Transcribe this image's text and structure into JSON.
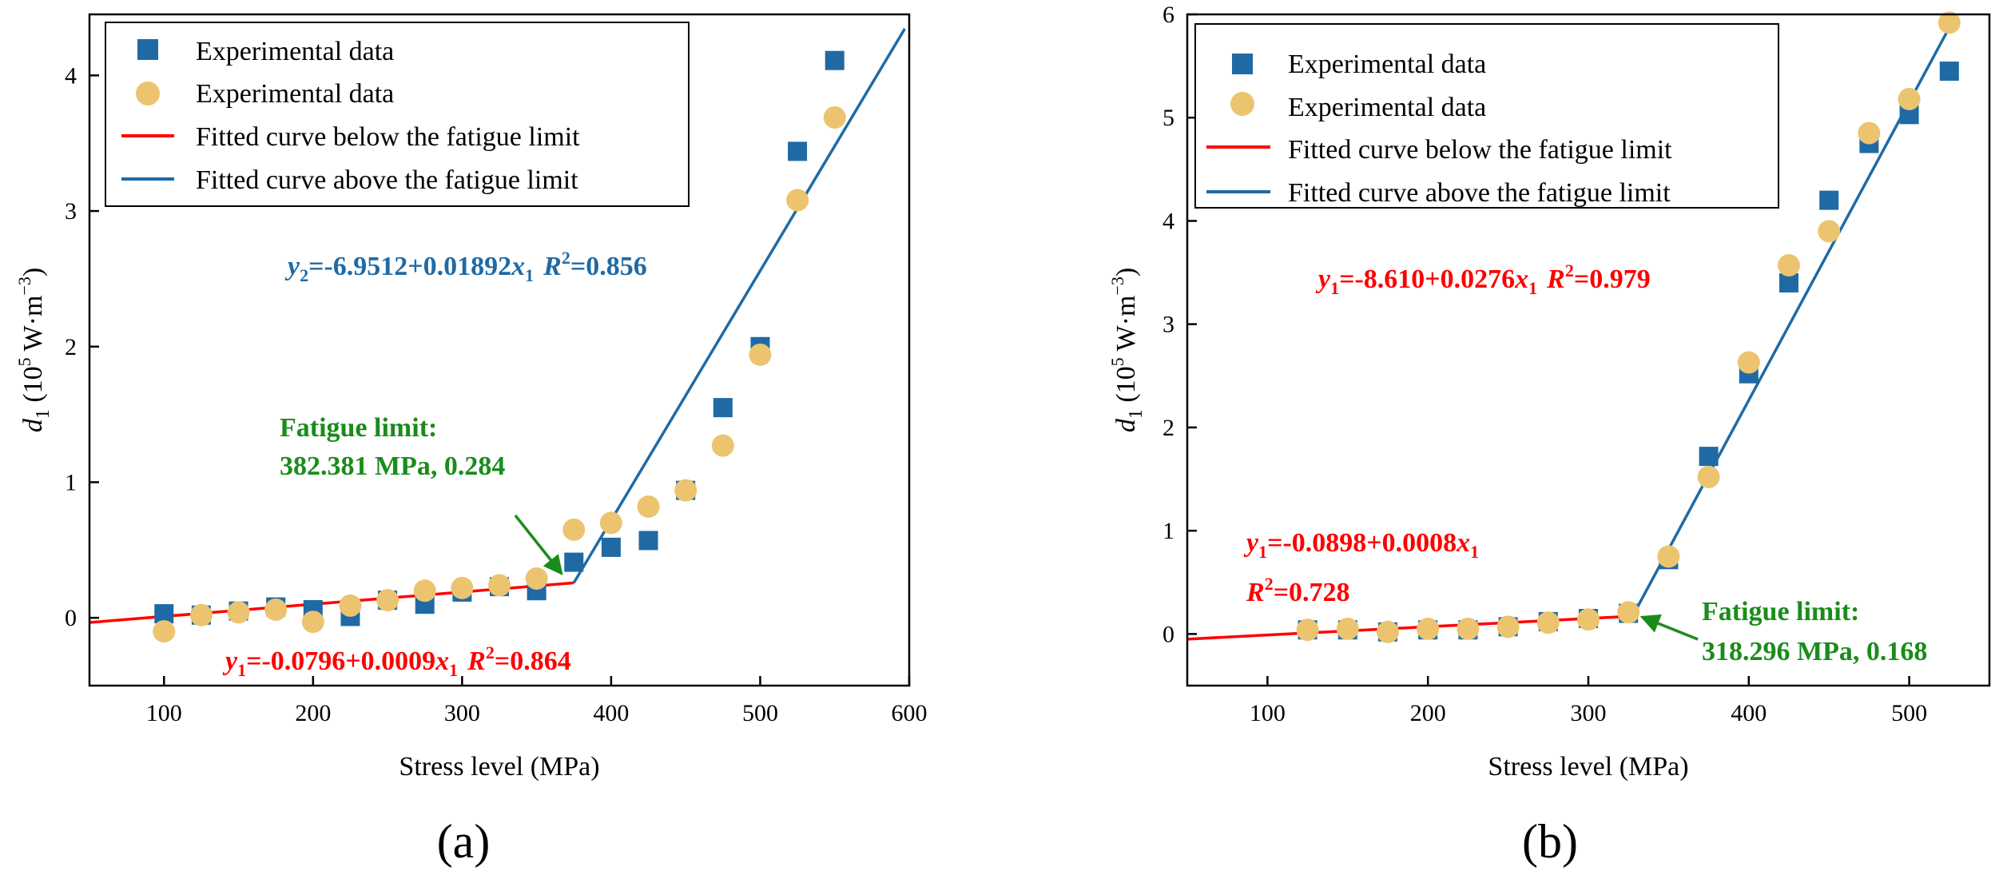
{
  "colors": {
    "blue": "#1f6aa5",
    "orange": "#ecc470",
    "red": "#ff0000",
    "green": "#1a8c1a"
  },
  "chart_data": [
    {
      "type": "scatter",
      "panel_label": "(a)",
      "xlabel": "Stress level (MPa)",
      "ylabel_main": "d",
      "ylabel_sub": "1",
      "ylabel_units": " (10",
      "ylabel_exp": "5",
      "ylabel_units2": " W·m",
      "ylabel_exp2": "−3",
      "ylabel_close": ")",
      "xlim": [
        50,
        600
      ],
      "ylim": [
        -0.5,
        4.45
      ],
      "xticks": [
        100,
        200,
        300,
        400,
        500,
        600
      ],
      "yticks": [
        0,
        1,
        2,
        3,
        4
      ],
      "legend": [
        {
          "label": "Experimental data",
          "marker": "square",
          "color": "#1f6aa5"
        },
        {
          "label": "Experimental data",
          "marker": "circle",
          "color": "#ecc470"
        },
        {
          "label": "Fitted curve below the fatigue limit",
          "marker": "line",
          "color": "#ff0000"
        },
        {
          "label": "Fitted curve above the fatigue limit",
          "marker": "line",
          "color": "#1f6aa5"
        }
      ],
      "series": [
        {
          "name": "Experimental data (squares)",
          "marker": "square",
          "color": "#1f6aa5",
          "x": [
            100,
            125,
            150,
            175,
            200,
            225,
            250,
            275,
            300,
            325,
            350,
            375,
            400,
            425,
            450,
            475,
            500,
            525,
            550
          ],
          "y": [
            0.03,
            0.02,
            0.05,
            0.08,
            0.06,
            0.01,
            0.13,
            0.1,
            0.19,
            0.23,
            0.2,
            0.41,
            0.52,
            0.57,
            0.94,
            1.55,
            2.0,
            3.44,
            4.11
          ]
        },
        {
          "name": "Experimental data (circles)",
          "marker": "circle",
          "color": "#ecc470",
          "x": [
            100,
            125,
            150,
            175,
            200,
            225,
            250,
            275,
            300,
            325,
            350,
            375,
            400,
            425,
            450,
            475,
            500,
            525,
            550
          ],
          "y": [
            -0.1,
            0.02,
            0.04,
            0.06,
            -0.03,
            0.09,
            0.13,
            0.2,
            0.22,
            0.24,
            0.29,
            0.65,
            0.7,
            0.82,
            0.94,
            1.27,
            1.94,
            3.08,
            3.69
          ]
        }
      ],
      "lines": [
        {
          "name": "Fitted curve below the fatigue limit",
          "color": "#ff0000",
          "x": [
            50,
            375
          ],
          "y": [
            -0.0346,
            0.2579
          ]
        },
        {
          "name": "Fitted curve above the fatigue limit",
          "color": "#1f6aa5",
          "x": [
            375,
            597
          ],
          "y": [
            0.2588,
            4.344
          ]
        }
      ],
      "annotations": {
        "eq_upper": {
          "var": "y",
          "sub": "2",
          "expr": "=-6.9512+0.01892",
          "xvar": "x",
          "xsub": "1",
          "r": "R",
          "rsup": "2",
          "rval": "=0.856"
        },
        "eq_lower": {
          "var": "y",
          "sub": "1",
          "expr": "=-0.0796+0.0009",
          "xvar": "x",
          "xsub": "1",
          "r": "R",
          "rsup": "2",
          "rval": "=0.864"
        },
        "fatigue_title": "Fatigue limit:",
        "fatigue_value": "382.381 MPa, 0.284"
      }
    },
    {
      "type": "scatter",
      "panel_label": "(b)",
      "xlabel": "Stress level (MPa)",
      "ylabel_main": "d",
      "ylabel_sub": "1",
      "ylabel_units": " (10",
      "ylabel_exp": "5",
      "ylabel_units2": " W·m",
      "ylabel_exp2": "−3",
      "ylabel_close": ")",
      "xlim": [
        50,
        550
      ],
      "ylim": [
        -0.5,
        6
      ],
      "xticks": [
        100,
        200,
        300,
        400,
        500
      ],
      "yticks": [
        0,
        1,
        2,
        3,
        4,
        5,
        6
      ],
      "legend": [
        {
          "label": "Experimental data",
          "marker": "square",
          "color": "#1f6aa5"
        },
        {
          "label": "Experimental data",
          "marker": "circle",
          "color": "#ecc470"
        },
        {
          "label": "Fitted curve below the fatigue limit",
          "marker": "line",
          "color": "#ff0000"
        },
        {
          "label": "Fitted curve above the fatigue limit",
          "marker": "line",
          "color": "#1f6aa5"
        }
      ],
      "series": [
        {
          "name": "Experimental data (squares)",
          "marker": "square",
          "color": "#1f6aa5",
          "x": [
            125,
            150,
            175,
            200,
            225,
            250,
            275,
            300,
            325,
            350,
            375,
            400,
            425,
            450,
            475,
            500,
            525
          ],
          "y": [
            0.04,
            0.04,
            0.02,
            0.04,
            0.04,
            0.07,
            0.12,
            0.15,
            0.2,
            0.72,
            1.72,
            2.52,
            3.4,
            4.2,
            4.75,
            5.03,
            5.45
          ]
        },
        {
          "name": "Experimental data (circles)",
          "marker": "circle",
          "color": "#ecc470",
          "x": [
            125,
            150,
            175,
            200,
            225,
            250,
            275,
            300,
            325,
            350,
            375,
            400,
            425,
            450,
            475,
            500,
            525
          ],
          "y": [
            0.04,
            0.05,
            0.02,
            0.05,
            0.05,
            0.07,
            0.11,
            0.14,
            0.21,
            0.75,
            1.52,
            2.63,
            3.57,
            3.9,
            4.85,
            5.18,
            5.92
          ]
        }
      ],
      "lines": [
        {
          "name": "Fitted curve below the fatigue limit",
          "color": "#ff0000",
          "x": [
            50,
            328
          ],
          "y": [
            -0.0498,
            0.1726
          ]
        },
        {
          "name": "Fitted curve above the fatigue limit",
          "color": "#1f6aa5",
          "x": [
            328,
            528
          ],
          "y": [
            0.1848,
            5.96
          ]
        }
      ],
      "annotations": {
        "eq_upper": {
          "var": "y",
          "sub": "1",
          "expr": "=-8.610+0.0276",
          "xvar": "x",
          "xsub": "1",
          "r": "R",
          "rsup": "2",
          "rval": "=0.979"
        },
        "eq_lower_line1": {
          "var": "y",
          "sub": "1",
          "expr": "=-0.0898+0.0008",
          "xvar": "x",
          "xsub": "1"
        },
        "eq_lower_line2": {
          "r": "R",
          "rsup": "2",
          "rval": "=0.728"
        },
        "fatigue_title": "Fatigue limit:",
        "fatigue_value": "318.296 MPa, 0.168"
      }
    }
  ]
}
